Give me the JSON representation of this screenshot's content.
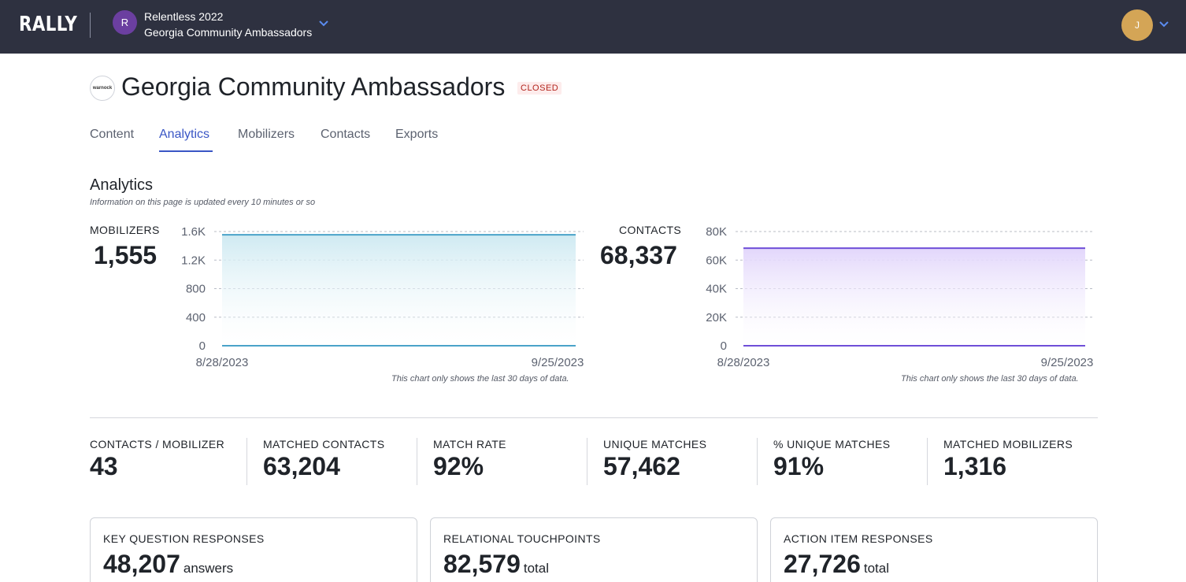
{
  "topbar": {
    "logo": "RALLY",
    "org_initial": "R",
    "org_name": "Relentless 2022",
    "campaign_name": "Georgia Community Ambassadors",
    "user_initial": "J"
  },
  "header": {
    "campaign_logo_text": "warnock",
    "title": "Georgia Community Ambassadors",
    "status": "CLOSED"
  },
  "tabs": [
    {
      "label": "Content"
    },
    {
      "label": "Analytics",
      "active": true
    },
    {
      "label": "Mobilizers"
    },
    {
      "label": "Contacts"
    },
    {
      "label": "Exports"
    }
  ],
  "analytics": {
    "title": "Analytics",
    "subtitle": "Information on this page is updated every 10 minutes or so",
    "mobilizers": {
      "label": "MOBILIZERS",
      "value": "1,555"
    },
    "contacts": {
      "label": "CONTACTS",
      "value": "68,337"
    },
    "chart_note": "This chart only shows the last 30 days of data."
  },
  "chart_data": [
    {
      "type": "area",
      "x": [
        "8/28/2023",
        "9/25/2023"
      ],
      "series": [
        {
          "values": [
            1555,
            1555
          ]
        }
      ],
      "yticks": [
        "0",
        "400",
        "800",
        "1.2K",
        "1.6K"
      ],
      "ylim": [
        0,
        1600
      ],
      "xticks": [
        "8/28/2023",
        "9/25/2023"
      ],
      "grid": true,
      "color": "#4aa3c9",
      "fill": "#d6eef4"
    },
    {
      "type": "area",
      "x": [
        "8/28/2023",
        "9/25/2023"
      ],
      "series": [
        {
          "values": [
            68337,
            68337
          ]
        }
      ],
      "yticks": [
        "0",
        "20K",
        "40K",
        "60K",
        "80K"
      ],
      "ylim": [
        0,
        80000
      ],
      "xticks": [
        "8/28/2023",
        "9/25/2023"
      ],
      "grid": true,
      "color": "#6f4fd8",
      "fill": "#e6dcfb"
    }
  ],
  "metrics": [
    {
      "label": "CONTACTS / MOBILIZER",
      "value": "43"
    },
    {
      "label": "MATCHED CONTACTS",
      "value": "63,204"
    },
    {
      "label": "MATCH RATE",
      "value": "92%"
    },
    {
      "label": "UNIQUE MATCHES",
      "value": "57,462"
    },
    {
      "label": "% UNIQUE MATCHES",
      "value": "91%"
    },
    {
      "label": "MATCHED MOBILIZERS",
      "value": "1,316"
    }
  ],
  "cards": [
    {
      "label": "KEY QUESTION RESPONSES",
      "value": "48,207",
      "unit": "answers"
    },
    {
      "label": "RELATIONAL TOUCHPOINTS",
      "value": "82,579",
      "unit": "total"
    },
    {
      "label": "ACTION ITEM RESPONSES",
      "value": "27,726",
      "unit": "total"
    }
  ]
}
